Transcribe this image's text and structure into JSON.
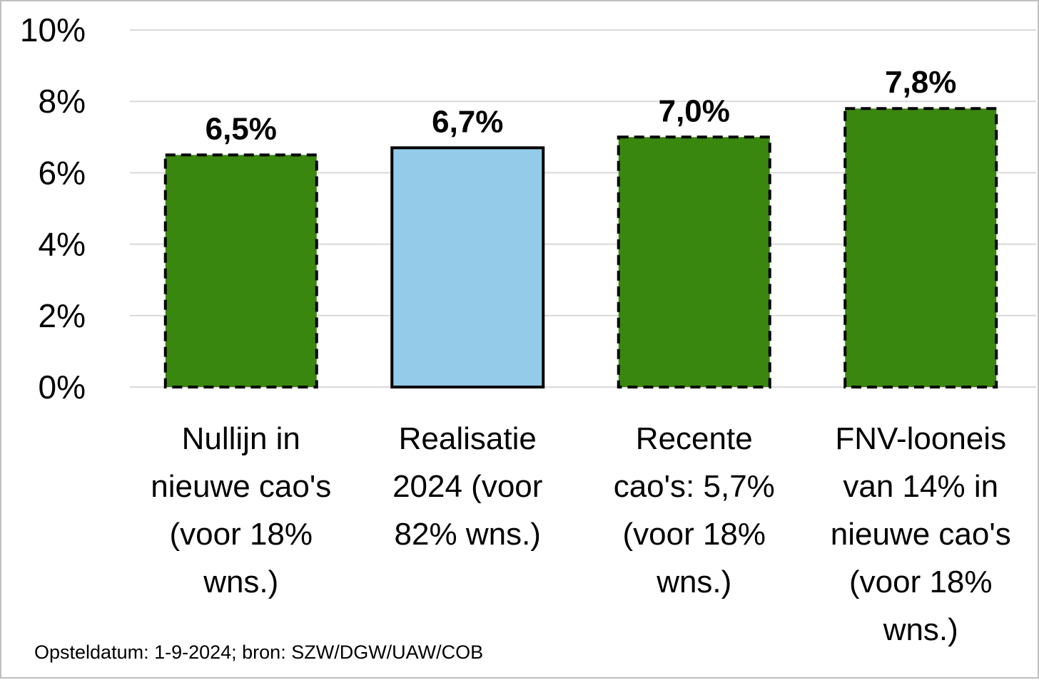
{
  "chart_data": {
    "type": "bar",
    "categories": [
      [
        "Nullijn in",
        "nieuwe cao's",
        "(voor 18%",
        "wns.)"
      ],
      [
        "Realisatie",
        "2024 (voor",
        "82% wns.)"
      ],
      [
        "Recente",
        "cao's: 5,7%",
        "(voor 18%",
        "wns.)"
      ],
      [
        "FNV-looneis",
        "van 14% in",
        "nieuwe cao's",
        "(voor 18%",
        "wns.)"
      ]
    ],
    "values": [
      6.5,
      6.7,
      7.0,
      7.8
    ],
    "data_labels": [
      "6,5%",
      "6,7%",
      "7,0%",
      "7,8%"
    ],
    "bar_styles": [
      "dashed",
      "solid",
      "dashed",
      "dashed"
    ],
    "colors": [
      "#3a870f",
      "#93cbe8",
      "#3a870f",
      "#3a870f"
    ],
    "ylim": [
      0,
      10
    ],
    "yticks": [
      0,
      2,
      4,
      6,
      8,
      10
    ],
    "ytick_labels": [
      "0%",
      "2%",
      "4%",
      "6%",
      "8%",
      "10%"
    ],
    "grid": true,
    "title": "",
    "xlabel": "",
    "ylabel": ""
  },
  "footnote": "Opsteldatum: 1-9-2024; bron: SZW/DGW/UAW/COB"
}
